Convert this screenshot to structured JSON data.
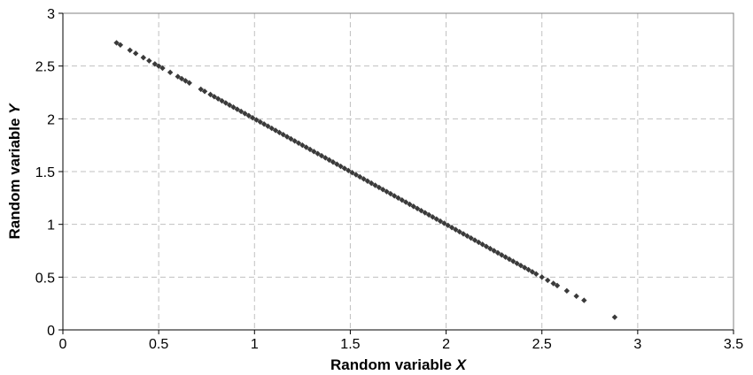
{
  "chart_data": {
    "type": "scatter",
    "title": "",
    "xlabel": "Random variable ",
    "xlabel_italic": "X",
    "ylabel": "Random variable ",
    "ylabel_italic": "Y",
    "xlim": [
      0,
      3.5
    ],
    "ylim": [
      0,
      3
    ],
    "xticks": [
      0,
      0.5,
      1,
      1.5,
      2,
      2.5,
      3,
      3.5
    ],
    "xtick_labels": [
      "0",
      "0.5",
      "1",
      "1.5",
      "2",
      "2.5",
      "3",
      "3.5"
    ],
    "yticks": [
      0,
      0.5,
      1,
      1.5,
      2,
      2.5,
      3
    ],
    "ytick_labels": [
      "0",
      "0.5",
      "1",
      "1.5",
      "2",
      "2.5",
      "3"
    ],
    "grid": true,
    "legend": "none",
    "marker_color": "#3a3a3a",
    "marker": "diamond",
    "relation": "Y = 3 - X",
    "series": [
      {
        "values": [
          [
            0.28,
            2.72
          ],
          [
            0.3,
            2.7
          ],
          [
            0.35,
            2.65
          ],
          [
            0.38,
            2.62
          ],
          [
            0.42,
            2.58
          ],
          [
            0.45,
            2.55
          ],
          [
            0.48,
            2.52
          ],
          [
            0.5,
            2.5
          ],
          [
            0.52,
            2.48
          ],
          [
            0.56,
            2.44
          ],
          [
            0.6,
            2.4
          ],
          [
            0.62,
            2.38
          ],
          [
            0.64,
            2.36
          ],
          [
            0.66,
            2.34
          ],
          [
            0.72,
            2.28
          ],
          [
            0.74,
            2.26
          ],
          [
            0.77,
            2.23
          ],
          [
            0.79,
            2.21
          ],
          [
            0.81,
            2.19
          ],
          [
            0.83,
            2.17
          ],
          [
            0.85,
            2.15
          ],
          [
            0.87,
            2.13
          ],
          [
            0.89,
            2.11
          ],
          [
            0.91,
            2.09
          ],
          [
            0.93,
            2.07
          ],
          [
            0.95,
            2.05
          ],
          [
            0.97,
            2.03
          ],
          [
            0.99,
            2.01
          ],
          [
            1.01,
            1.99
          ],
          [
            1.03,
            1.97
          ],
          [
            1.05,
            1.95
          ],
          [
            1.07,
            1.93
          ],
          [
            1.09,
            1.91
          ],
          [
            1.11,
            1.89
          ],
          [
            1.13,
            1.87
          ],
          [
            1.15,
            1.85
          ],
          [
            1.17,
            1.83
          ],
          [
            1.19,
            1.81
          ],
          [
            1.21,
            1.79
          ],
          [
            1.23,
            1.77
          ],
          [
            1.25,
            1.75
          ],
          [
            1.27,
            1.73
          ],
          [
            1.29,
            1.71
          ],
          [
            1.31,
            1.69
          ],
          [
            1.33,
            1.67
          ],
          [
            1.35,
            1.65
          ],
          [
            1.37,
            1.63
          ],
          [
            1.39,
            1.61
          ],
          [
            1.41,
            1.59
          ],
          [
            1.43,
            1.57
          ],
          [
            1.45,
            1.55
          ],
          [
            1.47,
            1.53
          ],
          [
            1.49,
            1.51
          ],
          [
            1.51,
            1.49
          ],
          [
            1.53,
            1.47
          ],
          [
            1.55,
            1.45
          ],
          [
            1.57,
            1.43
          ],
          [
            1.59,
            1.41
          ],
          [
            1.61,
            1.39
          ],
          [
            1.63,
            1.37
          ],
          [
            1.65,
            1.35
          ],
          [
            1.67,
            1.33
          ],
          [
            1.69,
            1.31
          ],
          [
            1.71,
            1.29
          ],
          [
            1.73,
            1.27
          ],
          [
            1.75,
            1.25
          ],
          [
            1.77,
            1.23
          ],
          [
            1.79,
            1.21
          ],
          [
            1.81,
            1.19
          ],
          [
            1.83,
            1.17
          ],
          [
            1.85,
            1.15
          ],
          [
            1.87,
            1.13
          ],
          [
            1.89,
            1.11
          ],
          [
            1.91,
            1.09
          ],
          [
            1.93,
            1.07
          ],
          [
            1.95,
            1.05
          ],
          [
            1.97,
            1.03
          ],
          [
            1.99,
            1.01
          ],
          [
            2.01,
            0.99
          ],
          [
            2.03,
            0.97
          ],
          [
            2.05,
            0.95
          ],
          [
            2.07,
            0.93
          ],
          [
            2.09,
            0.91
          ],
          [
            2.11,
            0.89
          ],
          [
            2.13,
            0.87
          ],
          [
            2.15,
            0.85
          ],
          [
            2.17,
            0.83
          ],
          [
            2.19,
            0.81
          ],
          [
            2.21,
            0.79
          ],
          [
            2.23,
            0.77
          ],
          [
            2.25,
            0.75
          ],
          [
            2.27,
            0.73
          ],
          [
            2.29,
            0.71
          ],
          [
            2.31,
            0.69
          ],
          [
            2.33,
            0.67
          ],
          [
            2.35,
            0.65
          ],
          [
            2.37,
            0.63
          ],
          [
            2.39,
            0.61
          ],
          [
            2.41,
            0.59
          ],
          [
            2.43,
            0.57
          ],
          [
            2.45,
            0.55
          ],
          [
            2.47,
            0.53
          ],
          [
            2.5,
            0.5
          ],
          [
            2.53,
            0.47
          ],
          [
            2.56,
            0.44
          ],
          [
            2.58,
            0.42
          ],
          [
            2.63,
            0.37
          ],
          [
            2.68,
            0.32
          ],
          [
            2.72,
            0.28
          ],
          [
            2.88,
            0.12
          ]
        ]
      }
    ]
  }
}
